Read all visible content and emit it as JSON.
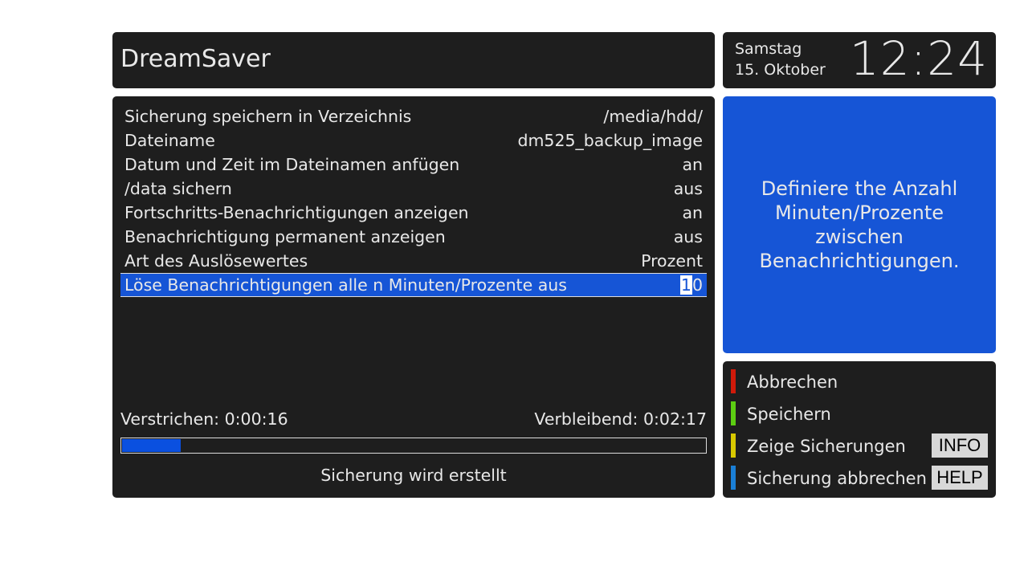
{
  "header": {
    "title": "DreamSaver"
  },
  "clock": {
    "weekday": "Samstag",
    "date": "15. Oktober",
    "time": "12:24"
  },
  "settings": [
    {
      "label": "Sicherung speichern in Verzeichnis",
      "value": "/media/hdd/"
    },
    {
      "label": "Dateiname",
      "value": "dm525_backup_image"
    },
    {
      "label": "Datum und Zeit im Dateinamen anfügen",
      "value": "an"
    },
    {
      "label": "/data sichern",
      "value": "aus"
    },
    {
      "label": "Fortschritts-Benachrichtigungen anzeigen",
      "value": "an"
    },
    {
      "label": "Benachrichtigung permanent anzeigen",
      "value": "aus"
    },
    {
      "label": "Art des Auslösewertes",
      "value": "Prozent"
    },
    {
      "label": "Löse Benachrichtigungen alle n Minuten/Prozente aus",
      "value_cursor": "1",
      "value_rest": "0",
      "selected": true
    }
  ],
  "progress": {
    "elapsed": "Verstrichen: 0:00:16",
    "remaining": "Verbleibend: 0:02:17",
    "percent": 10,
    "status": "Sicherung wird erstellt"
  },
  "help_text": "Definiere the Anzahl Minuten/Prozente zwischen Benachrichtigungen.",
  "keys": [
    {
      "color": "#d01a0a",
      "label": "Abbrechen"
    },
    {
      "color": "#5ccd12",
      "label": "Speichern"
    },
    {
      "color": "#d8c800",
      "label": "Zeige Sicherungen",
      "button": "INFO"
    },
    {
      "color": "#1a7fd6",
      "label": "Sicherung abbrechen",
      "button": "HELP"
    }
  ],
  "colors": {
    "panel": "#1e1e1e",
    "accent": "#1655d6",
    "progress": "#0a50e0"
  }
}
